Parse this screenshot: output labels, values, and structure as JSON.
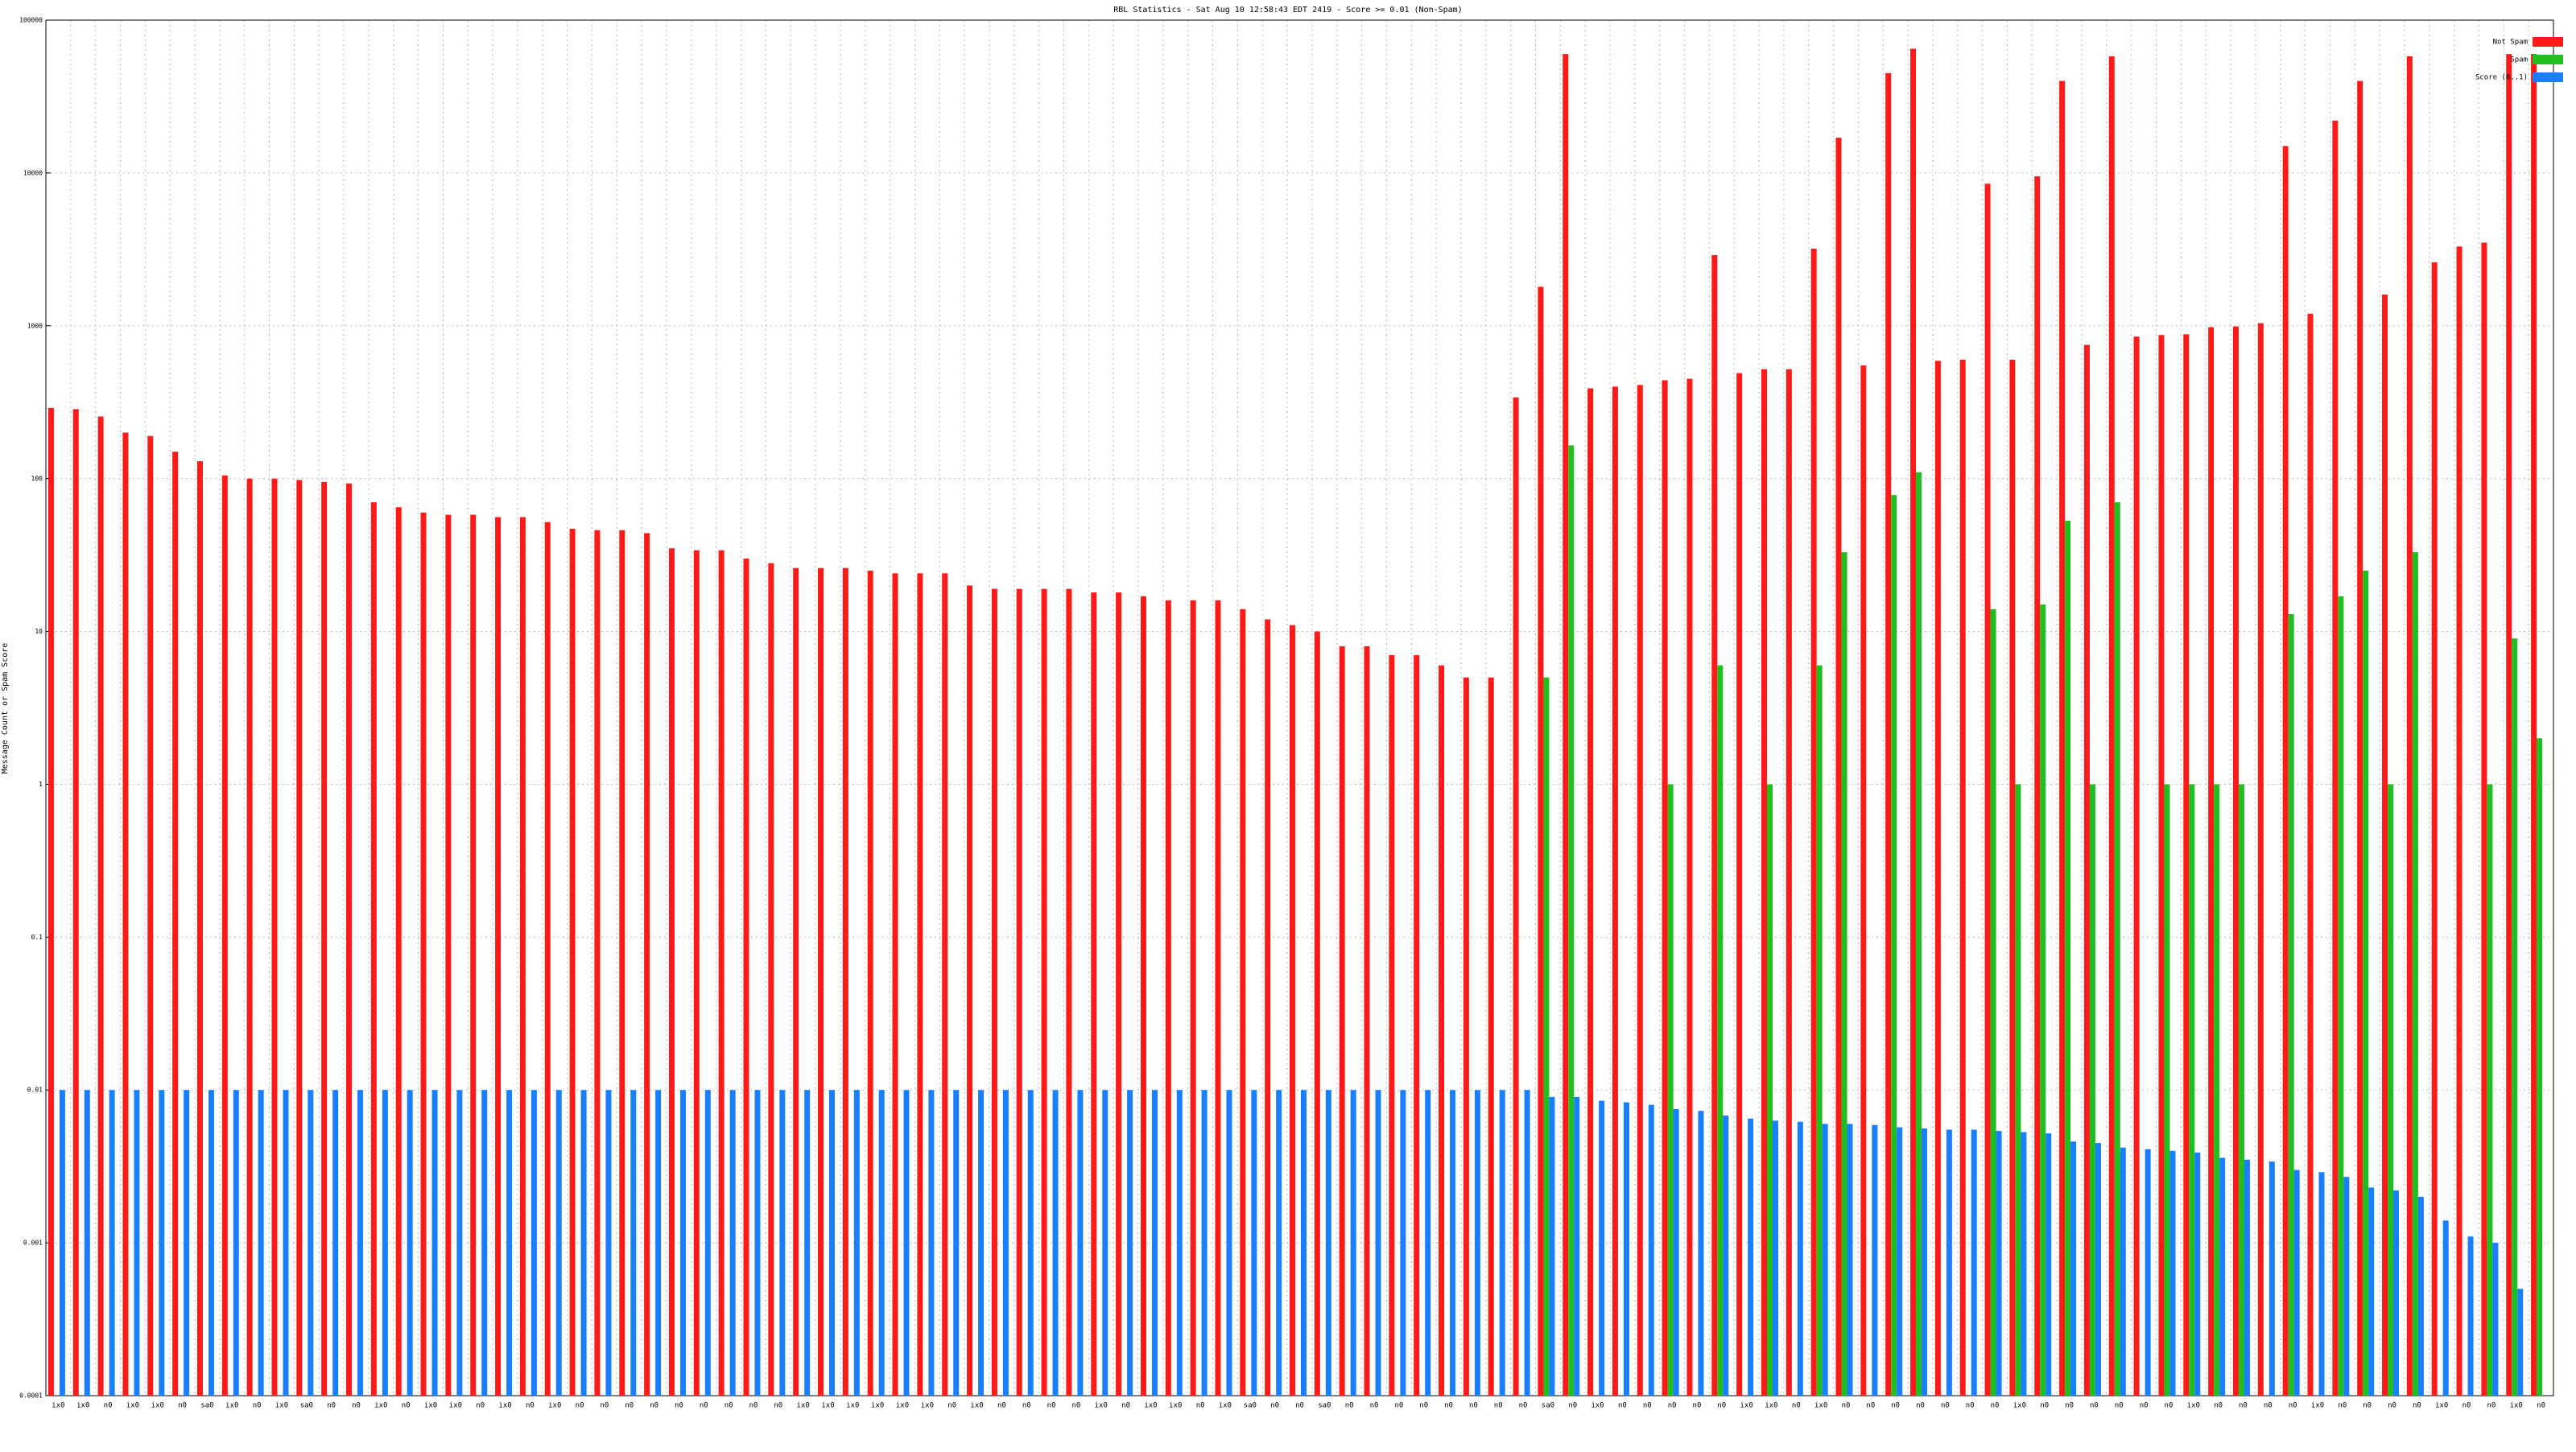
{
  "chart_data": {
    "type": "bar",
    "title": "RBL Statistics - Sat Aug 10 12:58:43 EDT 2419 - Score >= 0.01 (Non-Spam)",
    "ylabel": "Message Count or Spam Score",
    "log_scale": true,
    "grid": true,
    "legend": "upper right",
    "ylim": [
      0.0001,
      100000
    ],
    "yticks": [
      0.0001,
      0.001,
      0.01,
      0.1,
      1,
      10,
      100,
      1000,
      10000,
      100000
    ],
    "categories": [
      "ix0",
      "ix0",
      "n0",
      "ix0",
      "ix0",
      "n0",
      "sa0",
      "ix0",
      "n0",
      "ix0",
      "sa0",
      "n0",
      "n0",
      "ix0",
      "n0",
      "ix0",
      "ix0",
      "n0",
      "ix0",
      "n0",
      "ix0",
      "n0",
      "n0",
      "n0",
      "n0",
      "n0",
      "n0",
      "n0",
      "n0",
      "n0",
      "ix0",
      "ix0",
      "ix0",
      "ix0",
      "ix0",
      "ix0",
      "n0",
      "ix0",
      "n0",
      "n0",
      "n0",
      "n0",
      "ix0",
      "n0",
      "ix0",
      "ix0",
      "n0",
      "ix0",
      "sa0",
      "n0",
      "n0",
      "sa0",
      "n0",
      "n0",
      "n0",
      "n0",
      "n0",
      "n0",
      "n0",
      "n0",
      "sa0",
      "n0",
      "ix0",
      "n0",
      "n0",
      "n0",
      "n0",
      "n0",
      "ix0",
      "ix0",
      "n0",
      "ix0",
      "n0",
      "n0",
      "n0",
      "n0",
      "n0",
      "n0",
      "n0",
      "ix0",
      "n0",
      "n0",
      "n0",
      "n0",
      "n0",
      "n0",
      "ix0",
      "n0",
      "n0",
      "n0",
      "n0",
      "ix0",
      "n0",
      "n0",
      "n0",
      "n0",
      "ix0",
      "n0",
      "n0",
      "ix0",
      "n0"
    ],
    "series": [
      {
        "name": "Not Spam",
        "color": "#ff1a1a",
        "values": [
          290,
          285,
          255,
          200,
          190,
          150,
          130,
          105,
          100,
          100,
          98,
          95,
          93,
          70,
          65,
          60,
          58,
          58,
          56,
          56,
          52,
          47,
          46,
          46,
          44,
          35,
          34,
          34,
          30,
          28,
          26,
          26,
          26,
          25,
          24,
          24,
          24,
          20,
          19,
          19,
          19,
          19,
          18,
          18,
          17,
          16,
          16,
          16,
          14,
          12,
          11,
          10,
          8,
          8,
          7,
          7,
          6,
          5,
          5,
          340,
          1800,
          60000,
          390,
          400,
          410,
          440,
          450,
          2900,
          490,
          520,
          520,
          3200,
          17000,
          550,
          45000,
          65000,
          590,
          600,
          8500,
          600,
          9500,
          40000,
          750,
          58000,
          850,
          870,
          880,
          980,
          990,
          1040,
          15000,
          1200,
          22000,
          40000,
          1600,
          58000,
          2600,
          3300,
          3500,
          60000,
          60000
        ]
      },
      {
        "name": "Spam",
        "color": "#1fbf1f",
        "values": [
          null,
          null,
          null,
          null,
          null,
          null,
          null,
          null,
          null,
          null,
          null,
          null,
          null,
          null,
          null,
          null,
          null,
          null,
          null,
          null,
          null,
          null,
          null,
          null,
          null,
          null,
          null,
          null,
          null,
          null,
          null,
          null,
          null,
          null,
          null,
          null,
          null,
          null,
          null,
          null,
          null,
          null,
          null,
          null,
          null,
          null,
          null,
          null,
          null,
          null,
          null,
          null,
          null,
          null,
          null,
          null,
          null,
          null,
          null,
          null,
          5,
          165,
          null,
          null,
          null,
          1,
          null,
          6,
          null,
          1,
          null,
          6,
          33,
          null,
          78,
          110,
          null,
          null,
          14,
          1,
          15,
          53,
          1,
          70,
          null,
          1,
          1,
          1,
          1,
          null,
          13,
          null,
          17,
          25,
          1,
          33,
          null,
          null,
          1,
          9,
          2
        ]
      },
      {
        "name": "Score (0..1)",
        "color": "#1a7fff",
        "values": [
          0.01,
          0.01,
          0.01,
          0.01,
          0.01,
          0.01,
          0.01,
          0.01,
          0.01,
          0.01,
          0.01,
          0.01,
          0.01,
          0.01,
          0.01,
          0.01,
          0.01,
          0.01,
          0.01,
          0.01,
          0.01,
          0.01,
          0.01,
          0.01,
          0.01,
          0.01,
          0.01,
          0.01,
          0.01,
          0.01,
          0.01,
          0.01,
          0.01,
          0.01,
          0.01,
          0.01,
          0.01,
          0.01,
          0.01,
          0.01,
          0.01,
          0.01,
          0.01,
          0.01,
          0.01,
          0.01,
          0.01,
          0.01,
          0.01,
          0.01,
          0.01,
          0.01,
          0.01,
          0.01,
          0.01,
          0.01,
          0.01,
          0.01,
          0.01,
          0.01,
          0.009,
          0.009,
          0.0085,
          0.0083,
          0.008,
          0.0075,
          0.0073,
          0.0068,
          0.0065,
          0.0063,
          0.0062,
          0.006,
          0.006,
          0.0059,
          0.0057,
          0.0056,
          0.0055,
          0.0055,
          0.0054,
          0.0053,
          0.0052,
          0.0046,
          0.0045,
          0.0042,
          0.0041,
          0.004,
          0.0039,
          0.0036,
          0.0035,
          0.0034,
          0.003,
          0.0029,
          0.0027,
          0.0023,
          0.0022,
          0.002,
          0.0014,
          0.0011,
          0.001,
          0.0005,
          null
        ]
      }
    ]
  }
}
